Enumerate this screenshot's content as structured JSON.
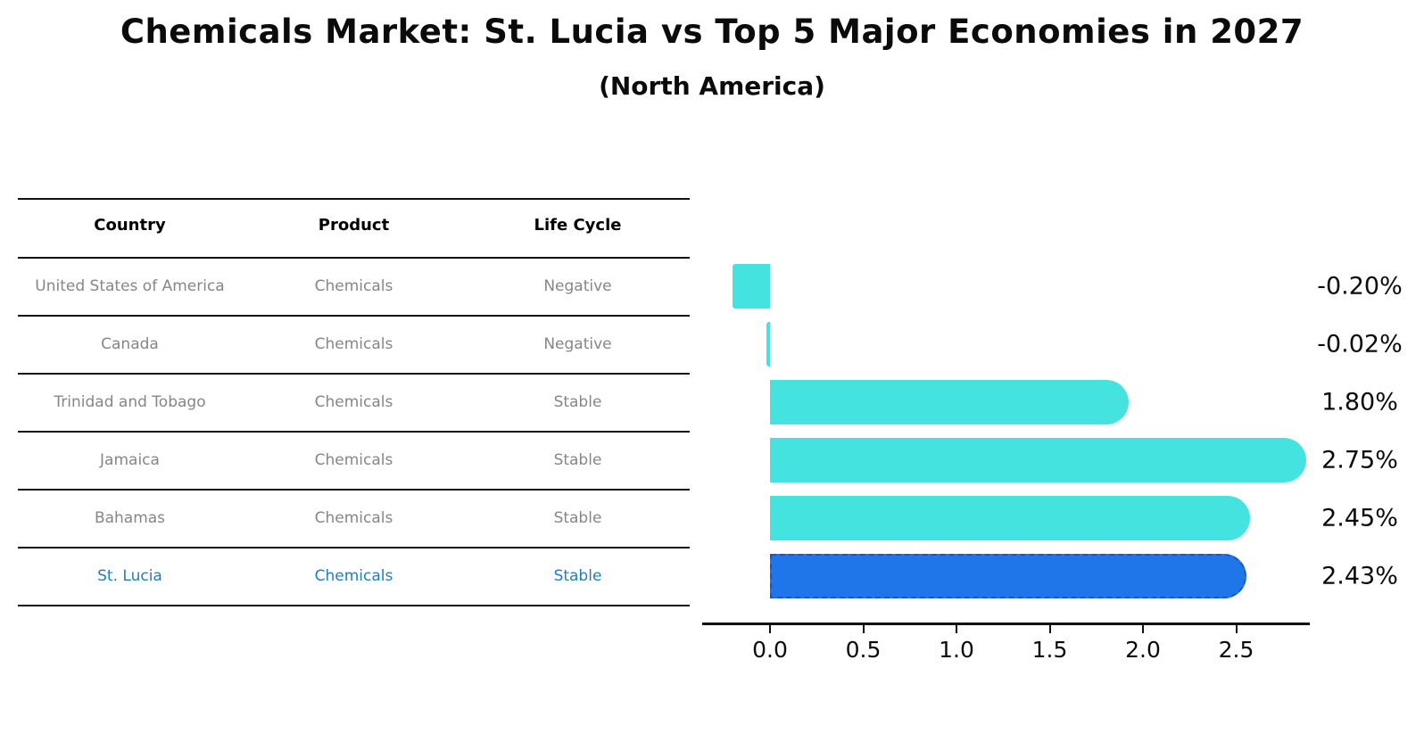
{
  "title": "Chemicals Market: St. Lucia vs Top 5 Major Economies in 2027",
  "subtitle": "(North America)",
  "table": {
    "headers": [
      "Country",
      "Product",
      "Life Cycle"
    ],
    "rows": [
      {
        "country": "United States of America",
        "product": "Chemicals",
        "life_cycle": "Negative",
        "highlighted": false
      },
      {
        "country": "Canada",
        "product": "Chemicals",
        "life_cycle": "Negative",
        "highlighted": false
      },
      {
        "country": "Trinidad and Tobago",
        "product": "Chemicals",
        "life_cycle": "Stable",
        "highlighted": false
      },
      {
        "country": "Jamaica",
        "product": "Chemicals",
        "life_cycle": "Stable",
        "highlighted": false
      },
      {
        "country": "Bahamas",
        "product": "Chemicals",
        "life_cycle": "Stable",
        "highlighted": false
      },
      {
        "country": "St. Lucia",
        "product": "Chemicals",
        "life_cycle": "Stable",
        "highlighted": true
      }
    ]
  },
  "chart_data": {
    "type": "bar",
    "orientation": "horizontal",
    "title": "Chemicals Market: St. Lucia vs Top 5 Major Economies in 2027 (North America)",
    "categories": [
      "United States of America",
      "Canada",
      "Trinidad and Tobago",
      "Jamaica",
      "Bahamas",
      "St. Lucia"
    ],
    "values": [
      -0.2,
      -0.02,
      1.8,
      2.75,
      2.45,
      2.43
    ],
    "value_labels": [
      "-0.20%",
      "-0.02%",
      "1.80%",
      "2.75%",
      "2.45%",
      "2.43%"
    ],
    "highlight_index": 5,
    "x_ticks": [
      0.0,
      0.5,
      1.0,
      1.5,
      2.0,
      2.5
    ],
    "x_tick_labels": [
      "0.0",
      "0.5",
      "1.0",
      "1.5",
      "2.0",
      "2.5"
    ],
    "xlim": [
      -0.37,
      2.9
    ],
    "grid": false,
    "legend": false
  },
  "colors": {
    "bar": "#45E3DF",
    "highlight_bar": "#1E76E8",
    "highlight_border": "#1657C8",
    "highlight_text": "#1F7EC2",
    "cell_text": "#868686",
    "header_text": "#000000",
    "axis": "#111111",
    "label_text": "#0b0b0b"
  }
}
